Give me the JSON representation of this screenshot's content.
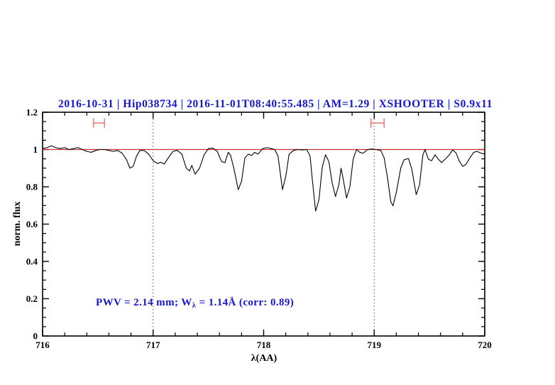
{
  "header": {
    "title": "2016-10-31 | Hip038734 | 2016-11-01T08:40:55.485 | AM=1.29 | XSHOOTER | S0.9x11",
    "title_color": "#1616d1"
  },
  "plot": {
    "ylabel": "norm. flux",
    "xlabel": "λ(AA)",
    "annotation": {
      "part1": "PWV = 2.14 mm; W",
      "sub": "λ",
      "part2": " = 1.14Å (corr: 0.89)",
      "color": "#1616d1"
    }
  },
  "chart_data": {
    "type": "line",
    "title": "2016-10-31 | Hip038734 | 2016-11-01T08:40:55.485 | AM=1.29 | XSHOOTER | S0.9x11",
    "xlabel": "λ(AA)",
    "ylabel": "norm. flux",
    "xlim": [
      716,
      720
    ],
    "ylim": [
      0,
      1.2
    ],
    "x_major_ticks": [
      716,
      717,
      718,
      719,
      720
    ],
    "x_tick_labels": [
      "716",
      "717",
      "718",
      "719",
      "720"
    ],
    "x_minor_step": 0.2,
    "y_major_ticks": [
      0,
      0.2,
      0.4,
      0.6,
      0.8,
      1,
      1.2
    ],
    "y_tick_labels": [
      "0",
      "0.2",
      "0.4",
      "0.6",
      "0.8",
      "1",
      "1.2"
    ],
    "y_minor_step": 0.05,
    "grid": "off",
    "dotted_vlines": [
      717,
      719
    ],
    "continuum": {
      "level": 1.0,
      "color": "#cc3333"
    },
    "range_markers": [
      {
        "x1": 716.46,
        "x2": 716.56,
        "flux": 1.142,
        "color": "#f08080"
      },
      {
        "x1": 718.97,
        "x2": 719.09,
        "flux": 1.142,
        "color": "#f08080"
      }
    ],
    "annotation_text": "PWV = 2.14 mm; Wλ = 1.14Å (corr: 0.89)",
    "series": [
      {
        "name": "normalized telluric spectrum",
        "color": "#000000",
        "points": [
          [
            716.0,
            1.005
          ],
          [
            716.04,
            1.01
          ],
          [
            716.08,
            1.02
          ],
          [
            716.12,
            1.01
          ],
          [
            716.16,
            1.005
          ],
          [
            716.2,
            1.01
          ],
          [
            716.24,
            1.0
          ],
          [
            716.28,
            1.005
          ],
          [
            716.32,
            1.01
          ],
          [
            716.36,
            1.0
          ],
          [
            716.4,
            0.99
          ],
          [
            716.44,
            0.985
          ],
          [
            716.48,
            0.995
          ],
          [
            716.52,
            1.0
          ],
          [
            716.56,
            1.0
          ],
          [
            716.6,
            0.995
          ],
          [
            716.64,
            0.99
          ],
          [
            716.68,
            0.995
          ],
          [
            716.72,
            0.98
          ],
          [
            716.76,
            0.945
          ],
          [
            716.79,
            0.9
          ],
          [
            716.82,
            0.91
          ],
          [
            716.85,
            0.965
          ],
          [
            716.88,
            0.995
          ],
          [
            716.92,
            0.995
          ],
          [
            716.96,
            0.975
          ],
          [
            717.0,
            0.94
          ],
          [
            717.04,
            0.925
          ],
          [
            717.07,
            0.932
          ],
          [
            717.1,
            0.922
          ],
          [
            717.14,
            0.958
          ],
          [
            717.18,
            0.99
          ],
          [
            717.22,
            0.995
          ],
          [
            717.26,
            0.975
          ],
          [
            717.3,
            0.9
          ],
          [
            717.33,
            0.885
          ],
          [
            717.35,
            0.915
          ],
          [
            717.38,
            0.868
          ],
          [
            717.42,
            0.9
          ],
          [
            717.46,
            0.97
          ],
          [
            717.5,
            1.005
          ],
          [
            717.54,
            1.008
          ],
          [
            717.58,
            0.99
          ],
          [
            717.62,
            0.935
          ],
          [
            717.65,
            0.93
          ],
          [
            717.68,
            0.985
          ],
          [
            717.7,
            0.97
          ],
          [
            717.73,
            0.9
          ],
          [
            717.77,
            0.785
          ],
          [
            717.8,
            0.83
          ],
          [
            717.83,
            0.955
          ],
          [
            717.86,
            0.975
          ],
          [
            717.89,
            0.968
          ],
          [
            717.92,
            0.985
          ],
          [
            717.95,
            0.975
          ],
          [
            717.99,
            1.005
          ],
          [
            718.03,
            1.01
          ],
          [
            718.07,
            1.005
          ],
          [
            718.1,
            1.0
          ],
          [
            718.13,
            0.965
          ],
          [
            718.15,
            0.875
          ],
          [
            718.17,
            0.785
          ],
          [
            718.2,
            0.855
          ],
          [
            718.23,
            0.975
          ],
          [
            718.27,
            0.995
          ],
          [
            718.31,
            1.0
          ],
          [
            718.35,
            0.998
          ],
          [
            718.39,
            1.0
          ],
          [
            718.42,
            0.965
          ],
          [
            718.44,
            0.84
          ],
          [
            718.47,
            0.67
          ],
          [
            718.5,
            0.73
          ],
          [
            718.53,
            0.905
          ],
          [
            718.56,
            0.972
          ],
          [
            718.59,
            0.935
          ],
          [
            718.62,
            0.82
          ],
          [
            718.65,
            0.748
          ],
          [
            718.68,
            0.81
          ],
          [
            718.7,
            0.9
          ],
          [
            718.72,
            0.84
          ],
          [
            718.75,
            0.74
          ],
          [
            718.78,
            0.8
          ],
          [
            718.81,
            0.95
          ],
          [
            718.84,
            1.0
          ],
          [
            718.87,
            0.985
          ],
          [
            718.9,
            0.98
          ],
          [
            718.94,
            1.0
          ],
          [
            718.98,
            1.003
          ],
          [
            719.02,
            1.0
          ],
          [
            719.06,
            0.995
          ],
          [
            719.09,
            0.955
          ],
          [
            719.12,
            0.85
          ],
          [
            719.15,
            0.72
          ],
          [
            719.17,
            0.698
          ],
          [
            719.2,
            0.77
          ],
          [
            719.24,
            0.9
          ],
          [
            719.27,
            0.945
          ],
          [
            719.31,
            0.952
          ],
          [
            719.34,
            0.895
          ],
          [
            719.38,
            0.758
          ],
          [
            719.41,
            0.81
          ],
          [
            719.44,
            0.97
          ],
          [
            719.46,
            1.0
          ],
          [
            719.49,
            0.948
          ],
          [
            719.52,
            0.94
          ],
          [
            719.55,
            0.972
          ],
          [
            719.58,
            0.948
          ],
          [
            719.61,
            0.93
          ],
          [
            719.65,
            0.953
          ],
          [
            719.68,
            0.972
          ],
          [
            719.71,
            0.998
          ],
          [
            719.74,
            0.982
          ],
          [
            719.77,
            0.938
          ],
          [
            719.8,
            0.91
          ],
          [
            719.83,
            0.92
          ],
          [
            719.86,
            0.95
          ],
          [
            719.9,
            0.985
          ],
          [
            719.93,
            0.99
          ],
          [
            719.96,
            0.982
          ],
          [
            720.0,
            0.975
          ]
        ]
      }
    ],
    "legend": "none"
  }
}
